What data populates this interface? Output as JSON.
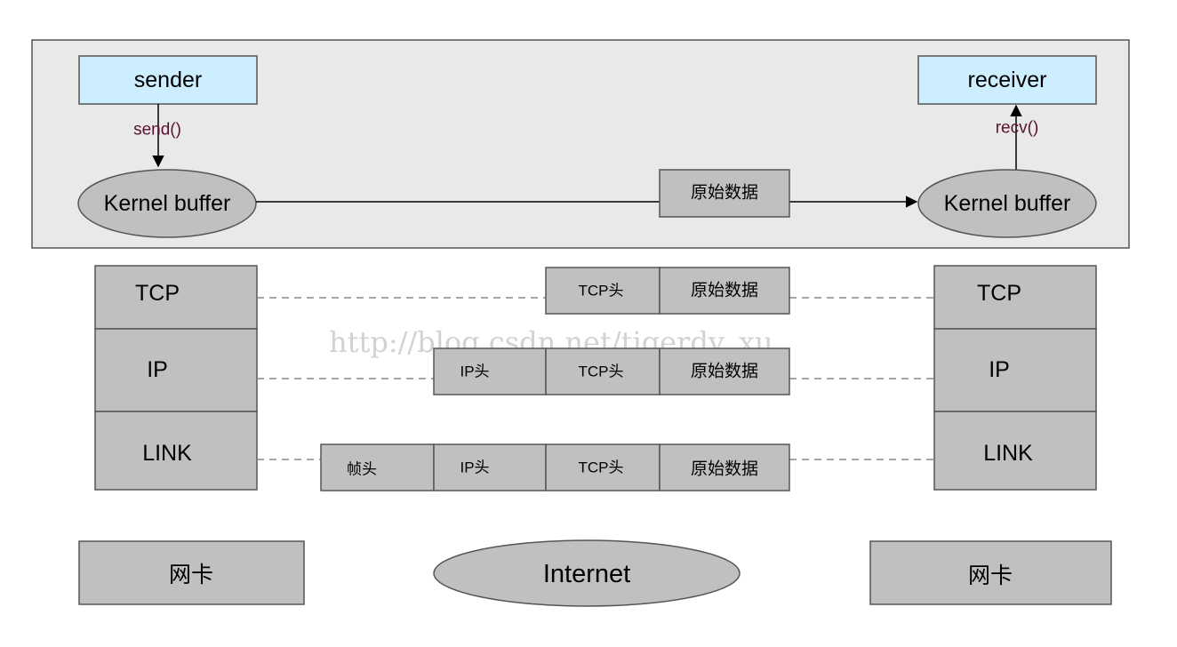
{
  "host": {
    "sender": "sender",
    "receiver": "receiver",
    "send_call": "send()",
    "recv_call": "recv()",
    "kernel_buffer_left": "Kernel buffer",
    "kernel_buffer_right": "Kernel buffer",
    "raw_data": "原始数据"
  },
  "layers": {
    "left": [
      "TCP",
      "IP",
      "LINK"
    ],
    "right": [
      "TCP",
      "IP",
      "LINK"
    ]
  },
  "packets": {
    "tcp": [
      "TCP头",
      "原始数据"
    ],
    "ip": [
      "IP头",
      "TCP头",
      "原始数据"
    ],
    "link": [
      "帧头",
      "IP头",
      "TCP头",
      "原始数据"
    ]
  },
  "bottom": {
    "nic_left": "网卡",
    "internet": "Internet",
    "nic_right": "网卡"
  },
  "watermark": "http://blog.csdn.net/tigerdy_xu",
  "colors": {
    "host_bg": "#e9e9e9",
    "app_box": "#cceeff",
    "gray_box": "#c0c0c0",
    "outline": "#555555",
    "dashed": "#888888"
  }
}
